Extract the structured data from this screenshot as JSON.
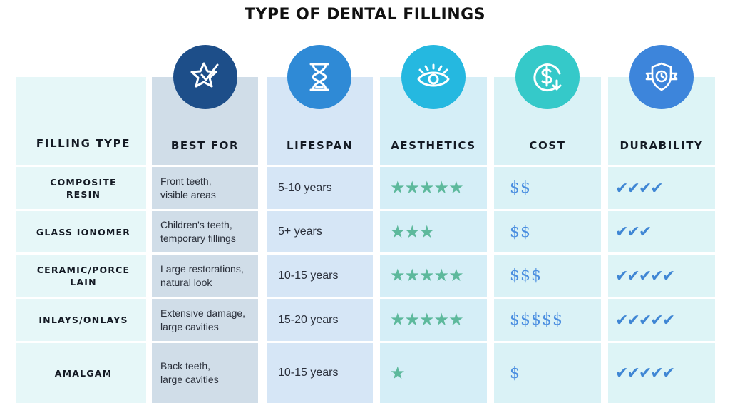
{
  "title": "TYPE OF DENTAL FILLINGS",
  "headers": [
    "FILLING TYPE",
    "BEST FOR",
    "LIFESPAN",
    "AESTHETICS",
    "COST",
    "DURABILITY"
  ],
  "icons": [
    {
      "name": "star-check-icon",
      "color": "#1d4e89"
    },
    {
      "name": "hourglass-icon",
      "color": "#2f8ad6"
    },
    {
      "name": "eye-icon",
      "color": "#25b8e0"
    },
    {
      "name": "dollar-cycle-icon",
      "color": "#35c9c9"
    },
    {
      "name": "shield-clock-icon",
      "color": "#3d85db"
    }
  ],
  "rows": [
    {
      "type": "COMPOSITE\nRESIN",
      "best": "Front teeth,\nvisible areas",
      "lifespan": "5-10 years",
      "aesthetics": "★★★★★",
      "cost": "$$",
      "durability": "✔✔✔✔"
    },
    {
      "type": "GLASS IONOMER",
      "best": "Children's teeth,\ntemporary fillings",
      "lifespan": "5+ years",
      "aesthetics": "★★★",
      "cost": "$$",
      "durability": "✔✔✔"
    },
    {
      "type": "CERAMIC/PORCE\nLAIN",
      "best": "Large restorations,\nnatural look",
      "lifespan": "10-15 years",
      "aesthetics": "★★★★★",
      "cost": "$$$",
      "durability": "✔✔✔✔✔"
    },
    {
      "type": "INLAYS/ONLAYS",
      "best": "Extensive damage,\nlarge cavities",
      "lifespan": "15-20 years",
      "aesthetics": "★★★★★",
      "cost": "$$$$$",
      "durability": "✔✔✔✔✔"
    },
    {
      "type": "AMALGAM",
      "best": "Back teeth,\nlarge cavities",
      "lifespan": "10-15 years",
      "aesthetics": "★",
      "cost": "$",
      "durability": "✔✔✔✔✔"
    }
  ]
}
